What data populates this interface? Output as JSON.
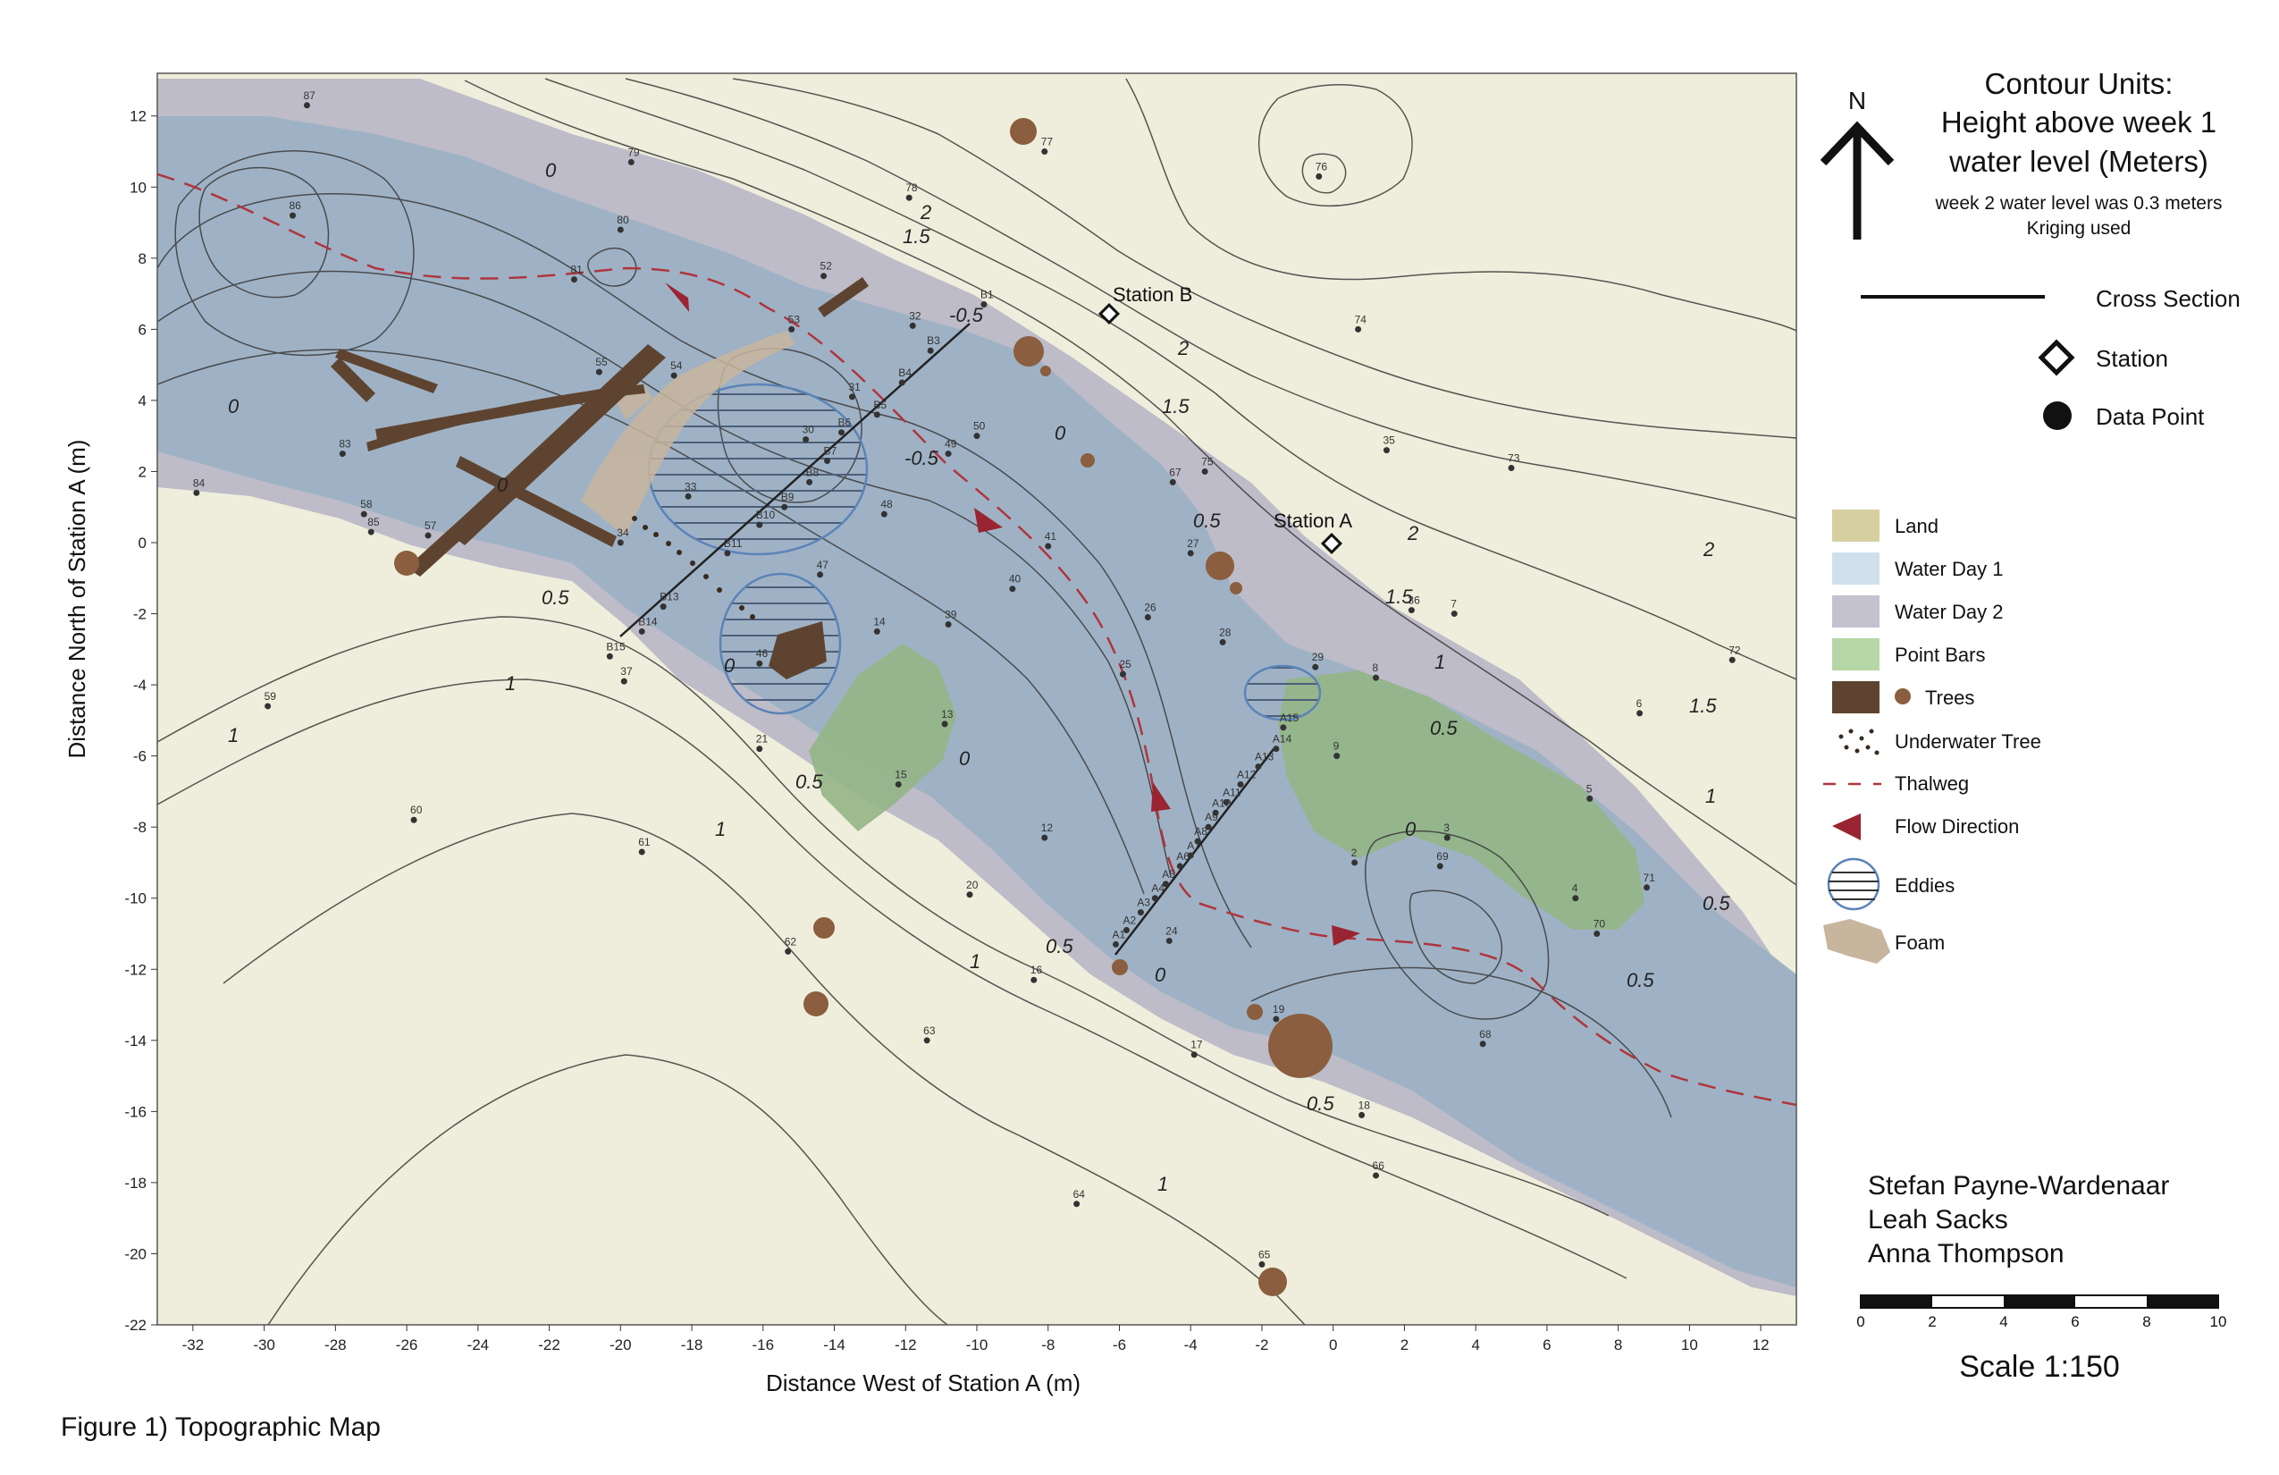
{
  "figure_caption": "Figure 1) Topographic Map",
  "axes": {
    "xlabel": "Distance West of Station A (m)",
    "ylabel": "Distance North of Station A (m)",
    "x_ticks": [
      "-32",
      "-30",
      "-28",
      "-26",
      "-24",
      "-22",
      "-20",
      "-18",
      "-16",
      "-14",
      "-12",
      "-10",
      "-8",
      "-6",
      "-4",
      "-2",
      "0",
      "2",
      "4",
      "6",
      "8",
      "10",
      "12"
    ],
    "y_ticks": [
      "12",
      "10",
      "8",
      "6",
      "4",
      "2",
      "0",
      "-2",
      "-4",
      "-6",
      "-8",
      "-10",
      "-12",
      "-14",
      "-16",
      "-18",
      "-20",
      "-22"
    ],
    "xlim": [
      -33,
      13
    ],
    "ylim": [
      -22,
      13.2
    ]
  },
  "north_arrow": {
    "label": "N"
  },
  "title": {
    "line1": "Contour Units:",
    "line2": "Height above week 1",
    "line3": "water level (Meters)",
    "note1": "week 2 water level was 0.3 meters",
    "note2": "Kriging used"
  },
  "symbols_legend": {
    "cross_section": "Cross Section",
    "station": "Station",
    "data_point": "Data Point"
  },
  "stations": [
    {
      "label": "Station B",
      "x": -6.2,
      "y": 6.4
    },
    {
      "label": "Station A",
      "x": 0,
      "y": 0
    }
  ],
  "contour_labels": [
    "0",
    "0",
    "0",
    "0",
    "0",
    "0",
    "0",
    "0",
    "0.5",
    "0.5",
    "0.5",
    "0.5",
    "0.5",
    "0.5",
    "0.5",
    "0.5",
    "1",
    "1",
    "1",
    "1",
    "1",
    "1",
    "1",
    "1.5",
    "1.5",
    "1.5",
    "1.5",
    "2",
    "2",
    "2",
    "2",
    "-0.5",
    "-0.5"
  ],
  "colors": {
    "land": "#efeedc",
    "water_day1": "#9fb2c5",
    "water_day2": "#bdbcc8",
    "point_bars": "#93b586",
    "trees": "#5e4430",
    "tree_dot": "#8a5e3e",
    "thalweg": "#b0353d",
    "flow": "#9a2431",
    "eddy": "#5b83b8",
    "foam": "#c8b59e",
    "contour": "#3a3a3a"
  },
  "legend": [
    {
      "label": "Land",
      "icon": "land-swatch"
    },
    {
      "label": "Water Day 1",
      "icon": "water-day1-swatch"
    },
    {
      "label": "Water Day 2",
      "icon": "water-day2-swatch"
    },
    {
      "label": "Point Bars",
      "icon": "point-bars-swatch"
    },
    {
      "label": "Trees",
      "icon": "trees-swatch"
    },
    {
      "label": "Underwater Tree",
      "icon": "underwater-tree-icon"
    },
    {
      "label": "Thalweg",
      "icon": "thalweg-line-icon"
    },
    {
      "label": "Flow Direction",
      "icon": "flow-arrow-icon"
    },
    {
      "label": "Eddies",
      "icon": "eddy-icon"
    },
    {
      "label": "Foam",
      "icon": "foam-swatch"
    }
  ],
  "authors": [
    "Stefan Payne-Wardenaar",
    "Leah Sacks",
    "Anna Thompson"
  ],
  "scale": {
    "ticks": [
      "0",
      "2",
      "4",
      "6",
      "8",
      "10"
    ],
    "label": "Scale 1:150"
  },
  "points": [
    {
      "l": "87",
      "x": -28.8,
      "y": 12.3
    },
    {
      "l": "79",
      "x": -19.7,
      "y": 10.7
    },
    {
      "l": "86",
      "x": -29.2,
      "y": 9.2
    },
    {
      "l": "80",
      "x": -20.0,
      "y": 8.8
    },
    {
      "l": "81",
      "x": -21.3,
      "y": 7.4
    },
    {
      "l": "52",
      "x": -14.3,
      "y": 7.5
    },
    {
      "l": "53",
      "x": -15.2,
      "y": 6.0
    },
    {
      "l": "55",
      "x": -20.6,
      "y": 4.8
    },
    {
      "l": "54",
      "x": -18.5,
      "y": 4.7
    },
    {
      "l": "31",
      "x": -13.5,
      "y": 4.1
    },
    {
      "l": "B5",
      "x": -12.8,
      "y": 3.6
    },
    {
      "l": "B4",
      "x": -12.1,
      "y": 4.5
    },
    {
      "l": "B3",
      "x": -11.3,
      "y": 5.4
    },
    {
      "l": "32",
      "x": -11.8,
      "y": 6.1
    },
    {
      "l": "B1",
      "x": -9.8,
      "y": 6.7
    },
    {
      "l": "78",
      "x": -11.9,
      "y": 9.7
    },
    {
      "l": "77",
      "x": -8.1,
      "y": 11.0
    },
    {
      "l": "76",
      "x": -0.4,
      "y": 10.3
    },
    {
      "l": "74",
      "x": 0.7,
      "y": 6.0
    },
    {
      "l": "35",
      "x": 1.5,
      "y": 2.6
    },
    {
      "l": "73",
      "x": 5.0,
      "y": 2.1
    },
    {
      "l": "30",
      "x": -14.8,
      "y": 2.9
    },
    {
      "l": "B6",
      "x": -13.8,
      "y": 3.1
    },
    {
      "l": "B7",
      "x": -14.2,
      "y": 2.3
    },
    {
      "l": "B8",
      "x": -14.7,
      "y": 1.7
    },
    {
      "l": "B9",
      "x": -15.4,
      "y": 1.0
    },
    {
      "l": "B10",
      "x": -16.1,
      "y": 0.5
    },
    {
      "l": "B11",
      "x": -17.0,
      "y": -0.3
    },
    {
      "l": "B13",
      "x": -18.8,
      "y": -1.8
    },
    {
      "l": "B14",
      "x": -19.4,
      "y": -2.5
    },
    {
      "l": "B15",
      "x": -20.3,
      "y": -3.2
    },
    {
      "l": "33",
      "x": -18.1,
      "y": 1.3
    },
    {
      "l": "34",
      "x": -20.0,
      "y": 0.0
    },
    {
      "l": "83",
      "x": -27.8,
      "y": 2.5
    },
    {
      "l": "84",
      "x": -31.9,
      "y": 1.4
    },
    {
      "l": "58",
      "x": -27.2,
      "y": 0.8
    },
    {
      "l": "85",
      "x": -27.0,
      "y": 0.3
    },
    {
      "l": "57",
      "x": -25.4,
      "y": 0.2
    },
    {
      "l": "49",
      "x": -10.8,
      "y": 2.5
    },
    {
      "l": "50",
      "x": -10.0,
      "y": 3.0
    },
    {
      "l": "48",
      "x": -12.6,
      "y": 0.8
    },
    {
      "l": "47",
      "x": -14.4,
      "y": -0.9
    },
    {
      "l": "41",
      "x": -8.0,
      "y": -0.1
    },
    {
      "l": "40",
      "x": -9.0,
      "y": -1.3
    },
    {
      "l": "39",
      "x": -10.8,
      "y": -2.3
    },
    {
      "l": "14",
      "x": -12.8,
      "y": -2.5
    },
    {
      "l": "46",
      "x": -16.1,
      "y": -3.4
    },
    {
      "l": "26",
      "x": -5.2,
      "y": -2.1
    },
    {
      "l": "25",
      "x": -5.9,
      "y": -3.7
    },
    {
      "l": "28",
      "x": -3.1,
      "y": -2.8
    },
    {
      "l": "27",
      "x": -4.0,
      "y": -0.3
    },
    {
      "l": "67",
      "x": -4.5,
      "y": 1.7
    },
    {
      "l": "75",
      "x": -3.6,
      "y": 2.0
    },
    {
      "l": "29",
      "x": -0.5,
      "y": -3.5
    },
    {
      "l": "8",
      "x": 1.2,
      "y": -3.8
    },
    {
      "l": "36",
      "x": 2.2,
      "y": -1.9
    },
    {
      "l": "7",
      "x": 3.4,
      "y": -2.0
    },
    {
      "l": "72",
      "x": 11.2,
      "y": -3.3
    },
    {
      "l": "6",
      "x": 8.6,
      "y": -4.8
    },
    {
      "l": "5",
      "x": 7.2,
      "y": -7.2
    },
    {
      "l": "9",
      "x": 0.1,
      "y": -6.0
    },
    {
      "l": "3",
      "x": 3.2,
      "y": -8.3
    },
    {
      "l": "69",
      "x": 3.0,
      "y": -9.1
    },
    {
      "l": "2",
      "x": 0.6,
      "y": -9.0
    },
    {
      "l": "71",
      "x": 8.8,
      "y": -9.7
    },
    {
      "l": "4",
      "x": 6.8,
      "y": -10.0
    },
    {
      "l": "70",
      "x": 7.4,
      "y": -11.0
    },
    {
      "l": "68",
      "x": 4.2,
      "y": -14.1
    },
    {
      "l": "13",
      "x": -10.9,
      "y": -5.1
    },
    {
      "l": "15",
      "x": -12.2,
      "y": -6.8
    },
    {
      "l": "21",
      "x": -16.1,
      "y": -5.8
    },
    {
      "l": "12",
      "x": -8.1,
      "y": -8.3
    },
    {
      "l": "20",
      "x": -10.2,
      "y": -9.9
    },
    {
      "l": "24",
      "x": -4.6,
      "y": -11.2
    },
    {
      "l": "16",
      "x": -8.4,
      "y": -12.3
    },
    {
      "l": "17",
      "x": -3.9,
      "y": -14.4
    },
    {
      "l": "19",
      "x": -1.6,
      "y": -13.4
    },
    {
      "l": "18",
      "x": 0.8,
      "y": -16.1
    },
    {
      "l": "66",
      "x": 1.2,
      "y": -17.8
    },
    {
      "l": "62",
      "x": -15.3,
      "y": -11.5
    },
    {
      "l": "63",
      "x": -11.4,
      "y": -14.0
    },
    {
      "l": "64",
      "x": -7.2,
      "y": -18.6
    },
    {
      "l": "65",
      "x": -2.0,
      "y": -20.3
    },
    {
      "l": "61",
      "x": -19.4,
      "y": -8.7
    },
    {
      "l": "60",
      "x": -25.8,
      "y": -7.8
    },
    {
      "l": "59",
      "x": -29.9,
      "y": -4.6
    },
    {
      "l": "37",
      "x": -19.9,
      "y": -3.9
    },
    {
      "l": "A1",
      "x": -6.1,
      "y": -11.3
    },
    {
      "l": "A2",
      "x": -5.8,
      "y": -10.9
    },
    {
      "l": "A3",
      "x": -5.4,
      "y": -10.4
    },
    {
      "l": "A4",
      "x": -5.0,
      "y": -10.0
    },
    {
      "l": "A5",
      "x": -4.7,
      "y": -9.6
    },
    {
      "l": "A6",
      "x": -4.3,
      "y": -9.1
    },
    {
      "l": "A7",
      "x": -4.0,
      "y": -8.8
    },
    {
      "l": "A8",
      "x": -3.8,
      "y": -8.4
    },
    {
      "l": "A9",
      "x": -3.5,
      "y": -8.0
    },
    {
      "l": "A10",
      "x": -3.3,
      "y": -7.6
    },
    {
      "l": "A11",
      "x": -3.0,
      "y": -7.3
    },
    {
      "l": "A12",
      "x": -2.6,
      "y": -6.8
    },
    {
      "l": "A13",
      "x": -2.1,
      "y": -6.3
    },
    {
      "l": "A14",
      "x": -1.6,
      "y": -5.8
    },
    {
      "l": "A15",
      "x": -1.4,
      "y": -5.2
    }
  ]
}
